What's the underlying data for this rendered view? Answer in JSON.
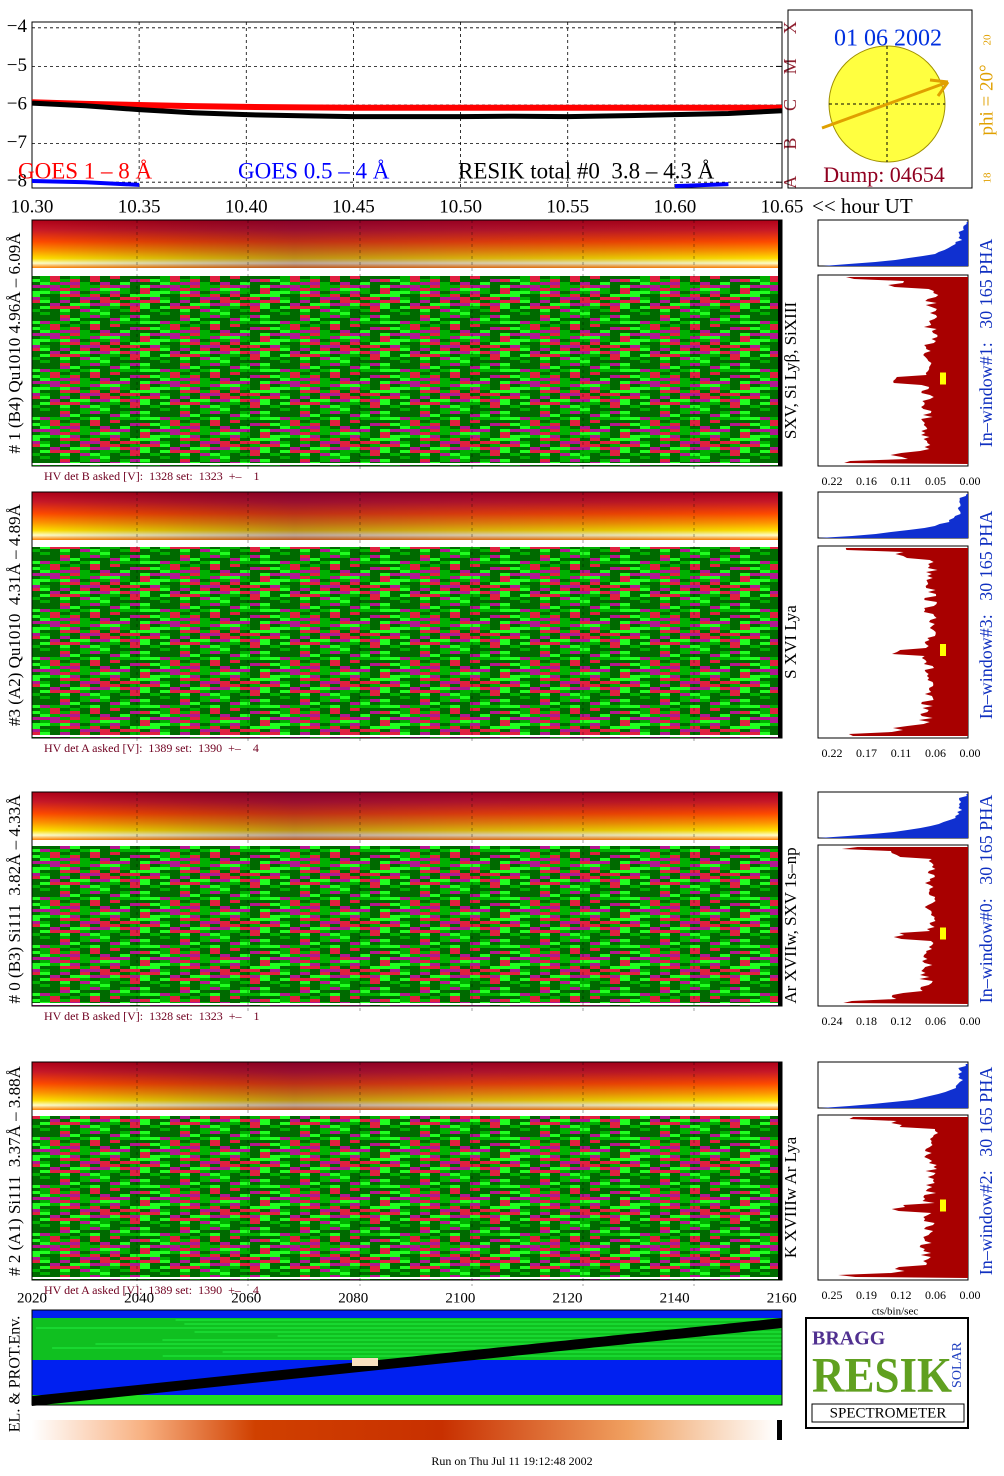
{
  "chart_data": {
    "type": "line",
    "x": [
      10.3,
      10.325,
      10.35,
      10.375,
      10.4,
      10.425,
      10.45,
      10.475,
      10.5,
      10.525,
      10.55,
      10.575,
      10.6,
      10.625,
      10.65
    ],
    "series": [
      {
        "name": "GOES 1 – 8 Å",
        "color": "#ff0000",
        "values": [
          -5.93,
          -5.97,
          -6.0,
          -6.03,
          -6.05,
          -6.06,
          -6.07,
          -6.07,
          -6.07,
          -6.07,
          -6.07,
          -6.07,
          -6.07,
          -6.07,
          -6.07
        ]
      },
      {
        "name": "GOES 0.5 – 4 Å",
        "color": "#0000ff",
        "values": [
          -7.97,
          -8.0,
          -8.07,
          null,
          null,
          null,
          null,
          null,
          null,
          null,
          null,
          null,
          -8.1,
          -8.05,
          null
        ]
      },
      {
        "name": "RESIK total #0  3.8 – 4.3 Å",
        "color": "#000000",
        "values": [
          -5.95,
          -6.02,
          -6.12,
          -6.2,
          -6.25,
          -6.28,
          -6.3,
          -6.3,
          -6.3,
          -6.29,
          -6.3,
          -6.28,
          -6.25,
          -6.22,
          -6.15
        ]
      }
    ],
    "xlim": [
      10.3,
      10.65
    ],
    "xticks": [
      {
        "value": 10.3,
        "label": "10.30"
      },
      {
        "value": 10.35,
        "label": "10.35"
      },
      {
        "value": 10.4,
        "label": "10.40"
      },
      {
        "value": 10.45,
        "label": "10.45"
      },
      {
        "value": 10.5,
        "label": "10.50"
      },
      {
        "value": 10.55,
        "label": "10.55"
      },
      {
        "value": 10.6,
        "label": "10.60"
      },
      {
        "value": 10.65,
        "label": "10.65"
      }
    ],
    "x_label": "<< hour UT",
    "ylim": [
      -8.15,
      -3.85
    ],
    "yticks": [
      {
        "value": -4,
        "label": "−4"
      },
      {
        "value": -5,
        "label": "−5"
      },
      {
        "value": -6,
        "label": "−6"
      },
      {
        "value": -7,
        "label": "−7"
      },
      {
        "value": -8,
        "label": "−8"
      }
    ],
    "y2lim": [
      -8.15,
      -3.85
    ],
    "y2ticks": [
      {
        "value": -8,
        "label": "A"
      },
      {
        "value": -7,
        "label": "B"
      },
      {
        "value": -6,
        "label": "C"
      },
      {
        "value": -5,
        "label": "M"
      },
      {
        "value": -4,
        "label": "X"
      }
    ],
    "grid": true
  },
  "sun_panel": {
    "date": "01 06 2002",
    "phi": "phi = 20°",
    "top_number": "20",
    "bottom_number": "18",
    "dump": "Dump: 04654"
  },
  "panels": [
    {
      "left_label": "# 1 (B4) Qu1010 4.96Å – 6.09Å",
      "line_label": "SXV, Si Lyβ, SiXIII",
      "window_label": "In–window#1:   30 165 PHA",
      "hv": "HV det B asked [V]:  1328 set:  1323  +–    1",
      "axis": [
        "0.22",
        "0.16",
        "0.11",
        "0.05",
        "0.00"
      ]
    },
    {
      "left_label": "#3 (A2) Qu1010  4.31Å – 4.89Å",
      "line_label": "S XVI Lya",
      "window_label": "In–window#3:   30 165 PHA",
      "hv": "HV det A asked [V]:  1389 set:  1390  +–    4",
      "axis": [
        "0.22",
        "0.17",
        "0.11",
        "0.06",
        "0.00"
      ]
    },
    {
      "left_label": "# 0 (B3) Si111  3.82Å – 4.33Å",
      "line_label": "Ar XVIIw, SXV 1s–np",
      "window_label": "In–window#0:   30 165 PHA",
      "hv": "HV det B asked [V]:  1328 set:  1323  +–    1",
      "axis": [
        "0.24",
        "0.18",
        "0.12",
        "0.06",
        "0.00"
      ]
    },
    {
      "left_label": "# 2 (A1) Si111  3.37Å – 3.88Å",
      "line_label": "K XVIIIw  Ar Lya",
      "window_label": "In–window#2:   30 165 PHA",
      "hv": "HV det A asked [V]:  1389 set:  1390  +–    4",
      "axis": [
        "0.25",
        "0.19",
        "0.12",
        "0.06",
        "0.00"
      ]
    }
  ],
  "histogram_unit": "cts/bin/sec",
  "env_panel": {
    "label": "EL. & PROT.Env.",
    "axis": [
      "2020",
      "2040",
      "2060",
      "2080",
      "2100",
      "2120",
      "2140",
      "2160"
    ]
  },
  "logo": {
    "top": "BRAGG",
    "word": "RESIK",
    "side": "SOLAR",
    "bottom": "SPECTROMETER"
  },
  "footer": "Run on Thu Jul 11 19:12:48 2002"
}
